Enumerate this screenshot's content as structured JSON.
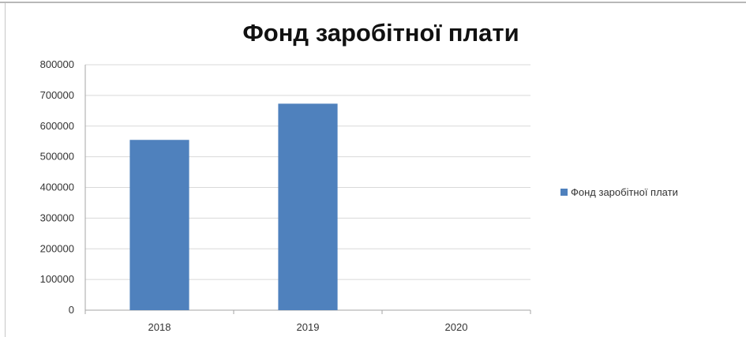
{
  "chart_data": {
    "type": "bar",
    "title": "Фонд заробітної плати",
    "categories": [
      "2018",
      "2019",
      "2020"
    ],
    "series": [
      {
        "name": "Фонд заробітної плати",
        "values": [
          555000,
          673000,
          0
        ],
        "color": "#4f81bd"
      }
    ],
    "yticks": [
      "0",
      "100000",
      "200000",
      "300000",
      "400000",
      "500000",
      "600000",
      "700000",
      "800000"
    ],
    "ylim": [
      0,
      800000
    ],
    "grid": true,
    "legend_position": "right"
  }
}
